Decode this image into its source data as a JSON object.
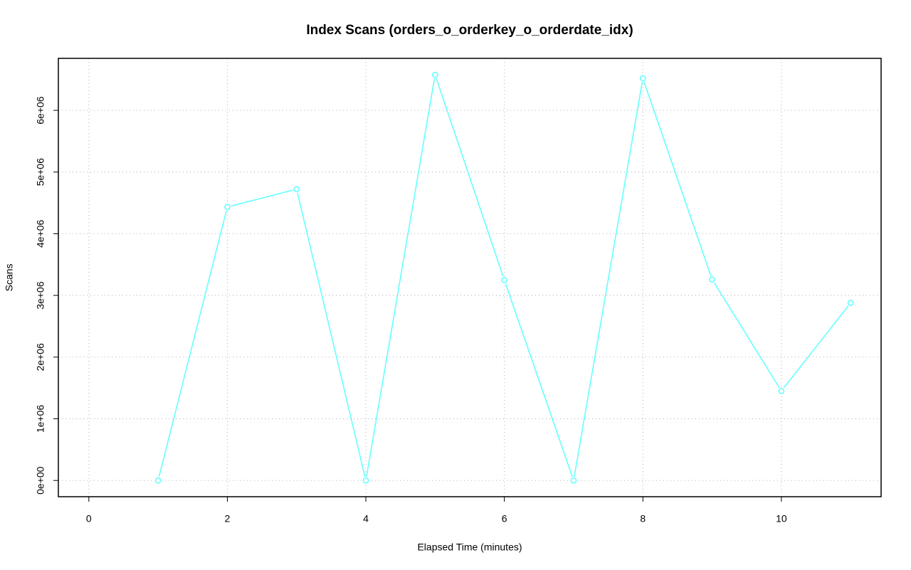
{
  "chart_data": {
    "type": "line",
    "title": "Index Scans (orders_o_orderkey_o_orderdate_idx)",
    "x_label": "Elapsed Time (minutes)",
    "y_label": "Scans",
    "x": [
      1,
      2,
      3,
      4,
      5,
      6,
      7,
      8,
      9,
      10,
      11
    ],
    "series": [
      {
        "color": "#66ffff",
        "values": [
          0,
          4434000,
          4722000,
          0,
          6576000,
          3248000,
          0,
          6519000,
          3259000,
          1451000,
          2879000
        ]
      }
    ],
    "xlim": [
      -0.44,
      11.44
    ],
    "xticks": [
      0,
      2,
      4,
      6,
      8,
      10
    ],
    "ylim": [
      -263000,
      6843000
    ],
    "yticks": [
      {
        "value": 0,
        "label": "0e+00"
      },
      {
        "value": 1000000,
        "label": "1e+06"
      },
      {
        "value": 2000000,
        "label": "2e+06"
      },
      {
        "value": 3000000,
        "label": "3e+06"
      },
      {
        "value": 4000000,
        "label": "4e+06"
      },
      {
        "value": 5000000,
        "label": "5e+06"
      },
      {
        "value": 6000000,
        "label": "6e+06"
      }
    ],
    "grid": true
  }
}
